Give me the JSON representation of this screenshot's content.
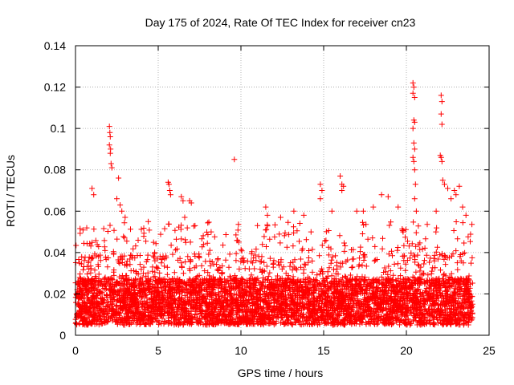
{
  "chart_data": {
    "type": "scatter",
    "title": "Day 175 of 2024, Rate Of TEC Index for receiver cn23",
    "xlabel": "GPS time / hours",
    "ylabel": "ROTI / TECUs",
    "xlim": [
      0,
      25
    ],
    "ylim": [
      0,
      0.14
    ],
    "grid": true,
    "marker": "+",
    "series_color": "#ff0000",
    "xticks": [
      {
        "value": 0,
        "label": "0"
      },
      {
        "value": 5,
        "label": "5"
      },
      {
        "value": 10,
        "label": "10"
      },
      {
        "value": 15,
        "label": "15"
      },
      {
        "value": 20,
        "label": "20"
      },
      {
        "value": 25,
        "label": "25"
      }
    ],
    "yticks": [
      {
        "value": 0,
        "label": "0"
      },
      {
        "value": 0.02,
        "label": "0.02"
      },
      {
        "value": 0.04,
        "label": "0.04"
      },
      {
        "value": 0.06,
        "label": "0.06"
      },
      {
        "value": 0.08,
        "label": "0.08"
      },
      {
        "value": 0.1,
        "label": "0.1"
      },
      {
        "value": 0.12,
        "label": "0.12"
      },
      {
        "value": 0.14,
        "label": "0.14"
      }
    ],
    "data_x_range": [
      0,
      24
    ],
    "dense_band": [
      0.005,
      0.035
    ],
    "notable_points": [
      {
        "x": 2.05,
        "y": 0.101
      },
      {
        "x": 2.08,
        "y": 0.098
      },
      {
        "x": 2.1,
        "y": 0.096
      },
      {
        "x": 2.05,
        "y": 0.092
      },
      {
        "x": 2.12,
        "y": 0.09
      },
      {
        "x": 2.1,
        "y": 0.088
      },
      {
        "x": 2.15,
        "y": 0.083
      },
      {
        "x": 2.2,
        "y": 0.081
      },
      {
        "x": 2.6,
        "y": 0.076
      },
      {
        "x": 1.0,
        "y": 0.071
      },
      {
        "x": 1.1,
        "y": 0.068
      },
      {
        "x": 2.5,
        "y": 0.066
      },
      {
        "x": 2.7,
        "y": 0.063
      },
      {
        "x": 2.8,
        "y": 0.06
      },
      {
        "x": 3.0,
        "y": 0.057
      },
      {
        "x": 4.4,
        "y": 0.055
      },
      {
        "x": 5.6,
        "y": 0.074
      },
      {
        "x": 5.65,
        "y": 0.073
      },
      {
        "x": 5.7,
        "y": 0.07
      },
      {
        "x": 5.75,
        "y": 0.068
      },
      {
        "x": 6.4,
        "y": 0.067
      },
      {
        "x": 6.5,
        "y": 0.065
      },
      {
        "x": 6.9,
        "y": 0.065
      },
      {
        "x": 7.0,
        "y": 0.064
      },
      {
        "x": 6.6,
        "y": 0.057
      },
      {
        "x": 8.2,
        "y": 0.05
      },
      {
        "x": 9.6,
        "y": 0.085
      },
      {
        "x": 11.0,
        "y": 0.053
      },
      {
        "x": 11.5,
        "y": 0.062
      },
      {
        "x": 11.6,
        "y": 0.058
      },
      {
        "x": 12.4,
        "y": 0.057
      },
      {
        "x": 13.2,
        "y": 0.06
      },
      {
        "x": 13.8,
        "y": 0.058
      },
      {
        "x": 14.8,
        "y": 0.073
      },
      {
        "x": 14.9,
        "y": 0.07
      },
      {
        "x": 14.8,
        "y": 0.066
      },
      {
        "x": 15.5,
        "y": 0.06
      },
      {
        "x": 16.0,
        "y": 0.077
      },
      {
        "x": 16.1,
        "y": 0.073
      },
      {
        "x": 16.2,
        "y": 0.072
      },
      {
        "x": 16.1,
        "y": 0.07
      },
      {
        "x": 17.0,
        "y": 0.06
      },
      {
        "x": 17.4,
        "y": 0.06
      },
      {
        "x": 18.0,
        "y": 0.062
      },
      {
        "x": 18.5,
        "y": 0.068
      },
      {
        "x": 18.9,
        "y": 0.067
      },
      {
        "x": 19.5,
        "y": 0.062
      },
      {
        "x": 19.8,
        "y": 0.05
      },
      {
        "x": 20.4,
        "y": 0.122
      },
      {
        "x": 20.45,
        "y": 0.12
      },
      {
        "x": 20.4,
        "y": 0.117
      },
      {
        "x": 20.5,
        "y": 0.115
      },
      {
        "x": 20.45,
        "y": 0.104
      },
      {
        "x": 20.5,
        "y": 0.103
      },
      {
        "x": 20.4,
        "y": 0.1
      },
      {
        "x": 20.45,
        "y": 0.093
      },
      {
        "x": 20.5,
        "y": 0.09
      },
      {
        "x": 20.4,
        "y": 0.086
      },
      {
        "x": 20.45,
        "y": 0.084
      },
      {
        "x": 20.5,
        "y": 0.08
      },
      {
        "x": 20.55,
        "y": 0.073
      },
      {
        "x": 20.5,
        "y": 0.066
      },
      {
        "x": 20.6,
        "y": 0.06
      },
      {
        "x": 22.1,
        "y": 0.116
      },
      {
        "x": 22.15,
        "y": 0.113
      },
      {
        "x": 22.1,
        "y": 0.107
      },
      {
        "x": 22.15,
        "y": 0.102
      },
      {
        "x": 22.05,
        "y": 0.087
      },
      {
        "x": 22.1,
        "y": 0.086
      },
      {
        "x": 22.15,
        "y": 0.084
      },
      {
        "x": 22.2,
        "y": 0.075
      },
      {
        "x": 22.3,
        "y": 0.073
      },
      {
        "x": 22.5,
        "y": 0.071
      },
      {
        "x": 22.9,
        "y": 0.07
      },
      {
        "x": 23.0,
        "y": 0.068
      },
      {
        "x": 23.2,
        "y": 0.072
      },
      {
        "x": 22.7,
        "y": 0.066
      },
      {
        "x": 23.4,
        "y": 0.062
      },
      {
        "x": 21.8,
        "y": 0.06
      },
      {
        "x": 23.6,
        "y": 0.058
      }
    ]
  }
}
